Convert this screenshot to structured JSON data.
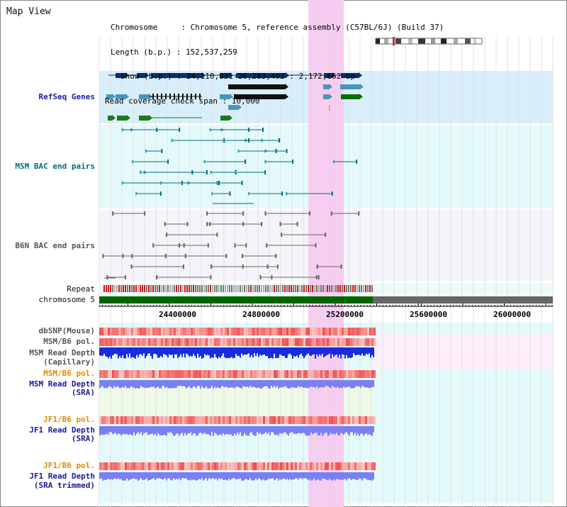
{
  "header": {
    "title": "Map View",
    "chromosome_line": "Chromosome     : Chromosome 5, reference assembly (C57BL/6J) (Build 37)",
    "length_line": "Length (b.p.) : 152,537,259",
    "show_line": "Show (b.p.) : 24,110,831-26,283,492 : 2,172,662 bp",
    "coverage_line": "Read coverage check span : 10,000"
  },
  "tracks": {
    "refseq": "RefSeq Genes",
    "msm_bac": "MSM BAC end pairs",
    "b6n_bac": "B6N BAC end pairs",
    "repeat": "Repeat",
    "chromosome": "chromosome 5",
    "dbsnp": "dbSNP(Mouse)",
    "msm_b6_pol_1": "MSM/B6 pol.",
    "msm_read_depth_cap_1": "MSM Read Depth",
    "msm_read_depth_cap_2": "(Capillary)",
    "msm_b6_pol_2": "MSM/B6 pol.",
    "msm_read_depth_sra_1": "MSM Read Depth",
    "msm_read_depth_sra_2": "(SRA)",
    "jf1_b6_pol_1": "JF1/B6 pol.",
    "jf1_read_depth_sra_1": "JF1 Read Depth",
    "jf1_read_depth_sra_2": "(SRA)",
    "jf1_b6_pol_2": "JF1/B6 pol.",
    "jf1_read_depth_trim_1": "JF1 Read Depth",
    "jf1_read_depth_trim_2": "(SRA trimmed)"
  },
  "axis": {
    "ticks": [
      "24400000",
      "24800000",
      "25200000",
      "25600000",
      "26000000"
    ]
  },
  "colors": {
    "highlight": "#f6cdf0",
    "refseq_bg": "#d8eefa",
    "bac_bg": "#e4fafa",
    "chrom_green": "#006400",
    "depth_blue": "#1a2ae0",
    "depth_light": "#7a80f0"
  }
}
